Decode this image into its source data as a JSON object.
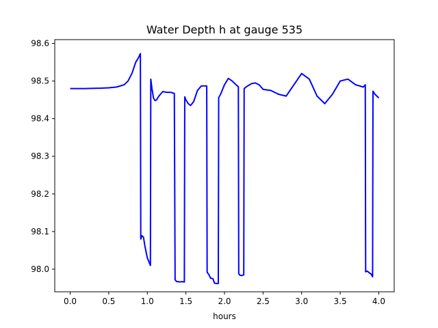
{
  "chart_data": {
    "type": "line",
    "title": "Water Depth h at gauge 535",
    "xlabel": "hours",
    "ylabel": "",
    "xlim": [
      -0.2,
      4.2
    ],
    "ylim": [
      97.94,
      98.61
    ],
    "x_ticks": [
      0.0,
      0.5,
      1.0,
      1.5,
      2.0,
      2.5,
      3.0,
      3.5,
      4.0
    ],
    "x_tick_labels": [
      "0.0",
      "0.5",
      "1.0",
      "1.5",
      "2.0",
      "2.5",
      "3.0",
      "3.5",
      "4.0"
    ],
    "y_ticks": [
      98.0,
      98.1,
      98.2,
      98.3,
      98.4,
      98.5,
      98.6
    ],
    "y_tick_labels": [
      "98.0",
      "98.1",
      "98.2",
      "98.3",
      "98.4",
      "98.5",
      "98.6"
    ],
    "grid": false,
    "legend": "none",
    "series": [
      {
        "color": "#0000ff",
        "x": [
          0.0,
          0.2,
          0.4,
          0.5,
          0.6,
          0.7,
          0.75,
          0.8,
          0.85,
          0.88,
          0.91,
          0.915,
          0.93,
          0.95,
          0.97,
          1.0,
          1.04,
          1.045,
          1.06,
          1.08,
          1.1,
          1.12,
          1.15,
          1.2,
          1.25,
          1.3,
          1.35,
          1.36,
          1.38,
          1.4,
          1.42,
          1.45,
          1.48,
          1.485,
          1.5,
          1.53,
          1.56,
          1.6,
          1.65,
          1.7,
          1.75,
          1.77,
          1.775,
          1.8,
          1.82,
          1.85,
          1.87,
          1.9,
          1.92,
          1.925,
          1.95,
          2.0,
          2.05,
          2.1,
          2.15,
          2.18,
          2.185,
          2.2,
          2.22,
          2.25,
          2.255,
          2.3,
          2.35,
          2.4,
          2.45,
          2.5,
          2.6,
          2.7,
          2.8,
          2.9,
          3.0,
          3.1,
          3.2,
          3.3,
          3.4,
          3.5,
          3.6,
          3.7,
          3.8,
          3.825,
          3.83,
          3.85,
          3.88,
          3.9,
          3.92,
          3.925,
          3.95,
          4.0
        ],
        "y": [
          98.48,
          98.48,
          98.481,
          98.482,
          98.484,
          98.49,
          98.5,
          98.52,
          98.55,
          98.56,
          98.573,
          98.08,
          98.089,
          98.085,
          98.06,
          98.03,
          98.01,
          98.505,
          98.48,
          98.455,
          98.448,
          98.45,
          98.46,
          98.472,
          98.47,
          98.47,
          98.467,
          97.972,
          97.967,
          97.967,
          97.966,
          97.967,
          97.966,
          98.458,
          98.45,
          98.44,
          98.435,
          98.445,
          98.475,
          98.487,
          98.487,
          98.487,
          97.992,
          97.985,
          97.976,
          97.975,
          97.963,
          97.962,
          97.962,
          98.456,
          98.465,
          98.49,
          98.507,
          98.5,
          98.49,
          98.485,
          97.988,
          97.984,
          97.983,
          97.985,
          98.48,
          98.487,
          98.493,
          98.495,
          98.49,
          98.478,
          98.475,
          98.465,
          98.46,
          98.49,
          98.52,
          98.505,
          98.46,
          98.44,
          98.465,
          98.5,
          98.505,
          98.49,
          98.484,
          98.49,
          97.993,
          97.995,
          97.99,
          97.987,
          97.98,
          98.473,
          98.465,
          98.455
        ]
      }
    ]
  }
}
